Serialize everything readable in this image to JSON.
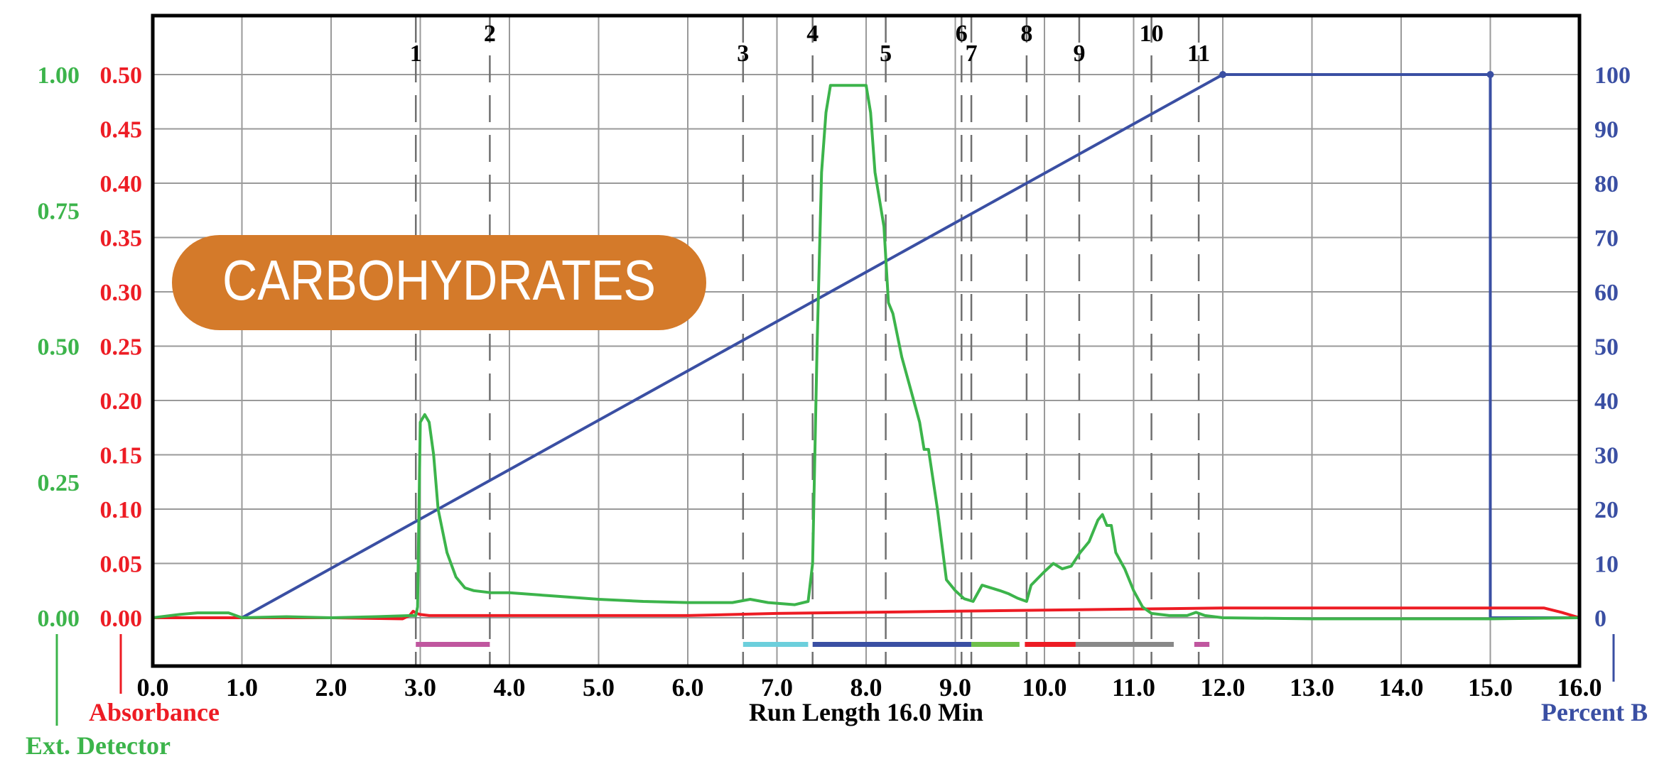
{
  "chart_data": {
    "type": "line",
    "title": "CARBOHYDRATES",
    "xlabel": "Run Length 16.0 Min",
    "x_ticks": [
      "0.0",
      "1.0",
      "2.0",
      "3.0",
      "4.0",
      "5.0",
      "6.0",
      "7.0",
      "8.0",
      "9.0",
      "10.0",
      "11.0",
      "12.0",
      "13.0",
      "14.0",
      "15.0",
      "16.0"
    ],
    "xlim": [
      0,
      16
    ],
    "grid": true,
    "axes": {
      "ext_detector": {
        "label": "Ext. Detector",
        "color": "#3cb44b",
        "ylim": [
          0,
          1.0
        ],
        "ticks": [
          "0.00",
          "0.25",
          "0.50",
          "0.75",
          "1.00"
        ]
      },
      "absorbance": {
        "label": "Absorbance",
        "color": "#ed1c24",
        "ylim": [
          0,
          0.5
        ],
        "ticks": [
          "0.00",
          "0.05",
          "0.10",
          "0.15",
          "0.20",
          "0.25",
          "0.30",
          "0.35",
          "0.40",
          "0.45",
          "0.50"
        ]
      },
      "percent_b": {
        "label": "Percent B",
        "color": "#3a4fa3",
        "ylim": [
          0,
          100
        ],
        "ticks": [
          "0",
          "10",
          "20",
          "30",
          "40",
          "50",
          "60",
          "70",
          "80",
          "90",
          "100"
        ]
      }
    },
    "series": [
      {
        "name": "Ext. Detector",
        "axis": "ext_detector",
        "color": "#3cb44b",
        "x": [
          0.0,
          0.3,
          0.5,
          0.85,
          1.0,
          1.5,
          2.0,
          2.5,
          2.9,
          2.95,
          2.97,
          3.0,
          3.05,
          3.1,
          3.15,
          3.2,
          3.3,
          3.4,
          3.5,
          3.6,
          3.8,
          4.0,
          4.5,
          5.0,
          5.5,
          6.0,
          6.5,
          6.7,
          6.9,
          7.2,
          7.35,
          7.4,
          7.45,
          7.5,
          7.55,
          7.6,
          7.65,
          7.75,
          8.0,
          8.05,
          8.1,
          8.2,
          8.25,
          8.3,
          8.4,
          8.5,
          8.6,
          8.65,
          8.7,
          8.8,
          8.9,
          9.0,
          9.1,
          9.2,
          9.3,
          9.4,
          9.5,
          9.6,
          9.7,
          9.8,
          9.85,
          10.0,
          10.1,
          10.2,
          10.3,
          10.4,
          10.5,
          10.6,
          10.65,
          10.7,
          10.75,
          10.8,
          10.9,
          11.0,
          11.1,
          11.2,
          11.4,
          11.6,
          11.7,
          11.8,
          12.0,
          13.0,
          14.0,
          15.0,
          16.0
        ],
        "values": [
          0.0,
          0.006,
          0.009,
          0.009,
          0.0,
          0.002,
          0.0,
          0.002,
          0.004,
          0.004,
          0.02,
          0.36,
          0.374,
          0.36,
          0.3,
          0.2,
          0.12,
          0.075,
          0.055,
          0.05,
          0.046,
          0.046,
          0.04,
          0.034,
          0.03,
          0.028,
          0.028,
          0.034,
          0.028,
          0.024,
          0.03,
          0.1,
          0.5,
          0.82,
          0.93,
          0.98,
          0.98,
          0.98,
          0.98,
          0.93,
          0.82,
          0.72,
          0.58,
          0.56,
          0.48,
          0.42,
          0.36,
          0.31,
          0.31,
          0.2,
          0.07,
          0.05,
          0.035,
          0.03,
          0.06,
          0.055,
          0.05,
          0.044,
          0.036,
          0.03,
          0.06,
          0.085,
          0.1,
          0.09,
          0.095,
          0.12,
          0.14,
          0.18,
          0.19,
          0.17,
          0.17,
          0.12,
          0.09,
          0.05,
          0.02,
          0.008,
          0.004,
          0.004,
          0.01,
          0.004,
          0.0,
          -0.002,
          -0.002,
          -0.002,
          0.0
        ]
      },
      {
        "name": "Absorbance",
        "axis": "absorbance",
        "color": "#ed1c24",
        "x": [
          0.0,
          1.0,
          2.0,
          2.8,
          2.88,
          2.92,
          2.96,
          3.0,
          3.1,
          4.0,
          5.0,
          6.0,
          7.0,
          8.0,
          9.0,
          10.0,
          11.0,
          12.0,
          13.0,
          14.0,
          15.0,
          15.6,
          15.8,
          16.0
        ],
        "values": [
          0.0,
          0.0,
          0.0,
          -0.001,
          0.002,
          0.006,
          0.004,
          0.003,
          0.002,
          0.002,
          0.002,
          0.002,
          0.004,
          0.005,
          0.006,
          0.007,
          0.008,
          0.009,
          0.009,
          0.009,
          0.009,
          0.009,
          0.005,
          0.0
        ]
      },
      {
        "name": "Percent B",
        "axis": "percent_b",
        "color": "#3a4fa3",
        "x": [
          0.0,
          1.0,
          12.0,
          15.0,
          15.0,
          16.0
        ],
        "values": [
          0,
          0,
          100,
          100,
          0,
          0
        ]
      }
    ],
    "fraction_markers": [
      {
        "label": "1",
        "x": 2.95
      },
      {
        "label": "2",
        "x": 3.78
      },
      {
        "label": "3",
        "x": 6.62
      },
      {
        "label": "4",
        "x": 7.4
      },
      {
        "label": "5",
        "x": 8.22
      },
      {
        "label": "6",
        "x": 9.07
      },
      {
        "label": "7",
        "x": 9.18
      },
      {
        "label": "8",
        "x": 9.8
      },
      {
        "label": "9",
        "x": 10.39
      },
      {
        "label": "10",
        "x": 11.2
      },
      {
        "label": "11",
        "x": 11.73
      }
    ],
    "fraction_bars": [
      {
        "start": 2.95,
        "end": 3.78,
        "color": "#c0569f"
      },
      {
        "start": 6.62,
        "end": 7.35,
        "color": "#6ccfdc"
      },
      {
        "start": 7.4,
        "end": 9.18,
        "color": "#3a4fa3"
      },
      {
        "start": 9.18,
        "end": 9.72,
        "color": "#6dbf4b"
      },
      {
        "start": 9.78,
        "end": 10.35,
        "color": "#ed1c24"
      },
      {
        "start": 10.35,
        "end": 11.45,
        "color": "#888888"
      },
      {
        "start": 11.68,
        "end": 11.85,
        "color": "#c0569f"
      }
    ],
    "badge": {
      "text": "CARBOHYDRATES",
      "color": "#d47a2a"
    }
  }
}
